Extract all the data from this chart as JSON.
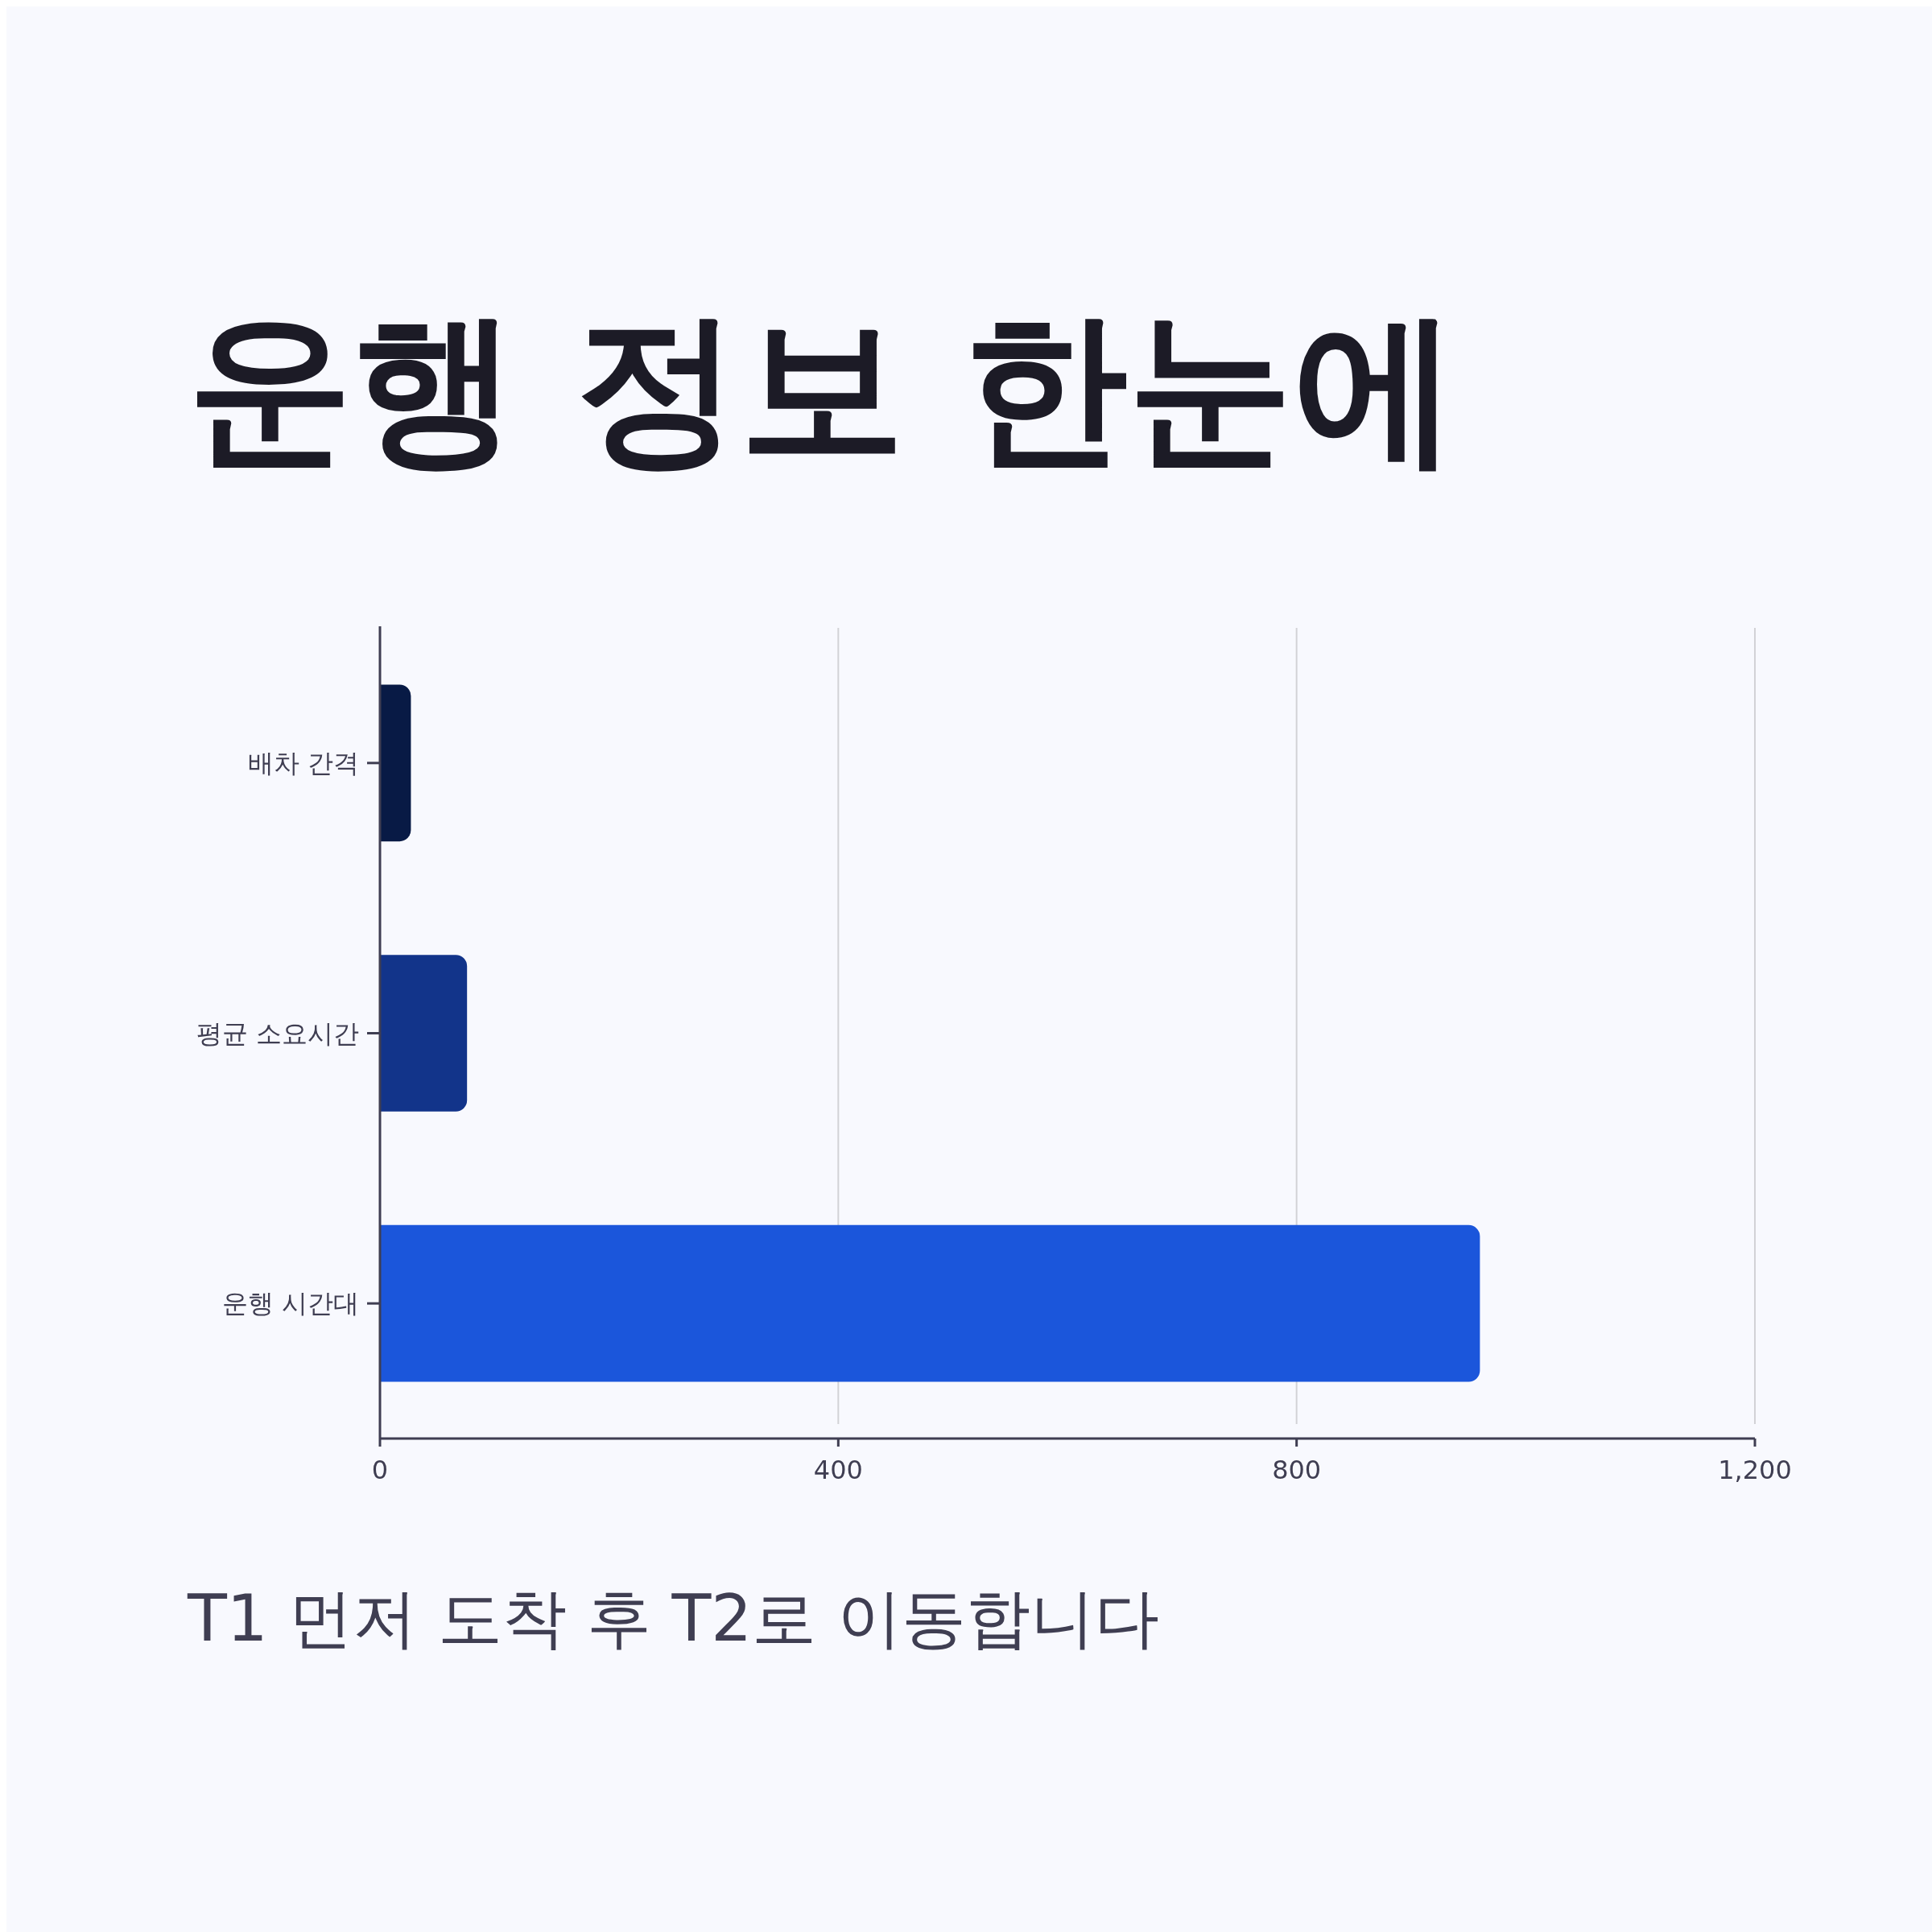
{
  "chart_data": {
    "type": "bar",
    "orientation": "horizontal",
    "title": "운행 정보 한눈에",
    "categories": [
      "배차 간격",
      "평균 소요시간",
      "운행 시간대"
    ],
    "values": [
      27,
      76,
      960
    ],
    "colors": [
      "#081a45",
      "#12348a",
      "#1b56db"
    ],
    "xlim": [
      0,
      1200
    ],
    "xticks": [
      0,
      400,
      {
        "value": 800,
        "label": "800"
      },
      {
        "value": 1200,
        "label": "1,200"
      }
    ],
    "grid": "x",
    "annotations": [
      "T1 먼저 도착 후 T2로 이동합니다"
    ]
  }
}
